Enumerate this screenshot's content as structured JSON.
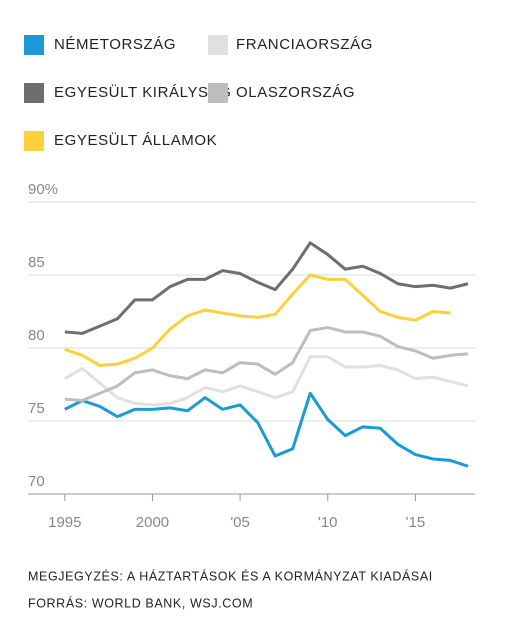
{
  "chart_data": {
    "type": "line",
    "x": [
      1995,
      1996,
      1997,
      1998,
      1999,
      2000,
      2001,
      2002,
      2003,
      2004,
      2005,
      2006,
      2007,
      2008,
      2009,
      2010,
      2011,
      2012,
      2013,
      2014,
      2015,
      2016,
      2017,
      2018
    ],
    "series": [
      {
        "name": "NÉMETORSZÁG",
        "color": "#1a9ad6",
        "values": [
          75.8,
          76.4,
          76.0,
          75.3,
          75.8,
          75.8,
          75.9,
          75.7,
          76.6,
          75.8,
          76.1,
          74.9,
          72.6,
          73.1,
          76.9,
          75.1,
          74.0,
          74.6,
          74.5,
          73.4,
          72.7,
          72.4,
          72.3,
          71.9
        ]
      },
      {
        "name": "FRANCIAORSZÁG",
        "color": "#e0e0e0",
        "values": [
          77.9,
          78.6,
          77.6,
          76.6,
          76.2,
          76.1,
          76.2,
          76.6,
          77.3,
          77.0,
          77.4,
          77.0,
          76.6,
          77.0,
          79.4,
          79.4,
          78.7,
          78.7,
          78.8,
          78.5,
          77.9,
          78.0,
          77.7,
          77.4
        ]
      },
      {
        "name": "EGYESÜLT KIRÁLYSÁG",
        "color": "#6e6e6e",
        "values": [
          81.1,
          81.0,
          81.5,
          82.0,
          83.3,
          83.3,
          84.2,
          84.7,
          84.7,
          85.3,
          85.1,
          84.5,
          84.0,
          85.4,
          87.2,
          86.4,
          85.4,
          85.6,
          85.1,
          84.4,
          84.2,
          84.3,
          84.1,
          84.4
        ]
      },
      {
        "name": "OLASZORSZÁG",
        "color": "#bdbdbd",
        "values": [
          76.5,
          76.4,
          76.9,
          77.4,
          78.3,
          78.5,
          78.1,
          77.9,
          78.5,
          78.3,
          79.0,
          78.9,
          78.2,
          79.0,
          81.2,
          81.4,
          81.1,
          81.1,
          80.8,
          80.1,
          79.8,
          79.3,
          79.5,
          79.6
        ]
      },
      {
        "name": "EGYESÜLT ÁLLAMOK",
        "color": "#fcd13a",
        "values": [
          79.9,
          79.5,
          78.8,
          78.9,
          79.3,
          80.0,
          81.3,
          82.2,
          82.6,
          82.4,
          82.2,
          82.1,
          82.3,
          83.7,
          85.0,
          84.7,
          84.7,
          83.6,
          82.5,
          82.1,
          81.9,
          82.5,
          82.4,
          null
        ]
      }
    ],
    "xlim": [
      1992.9,
      2018.4
    ],
    "xticks": [
      1995,
      2000,
      {
        "value": 2005,
        "label": "'05"
      },
      {
        "value": 2010,
        "label": "'10"
      },
      {
        "value": 2015,
        "label": "'15"
      }
    ],
    "ylim": [
      70,
      90
    ],
    "yticks": [
      70,
      75,
      80,
      85,
      {
        "value": 90,
        "label": "90%"
      }
    ],
    "grid": true,
    "notes": [
      "MEGJEGYZÉS: A HÁZTARTÁSOK ÉS A KORMÁNYZAT KIADÁSAI",
      "FORRÁS: WORLD BANK, WSJ.COM"
    ]
  }
}
